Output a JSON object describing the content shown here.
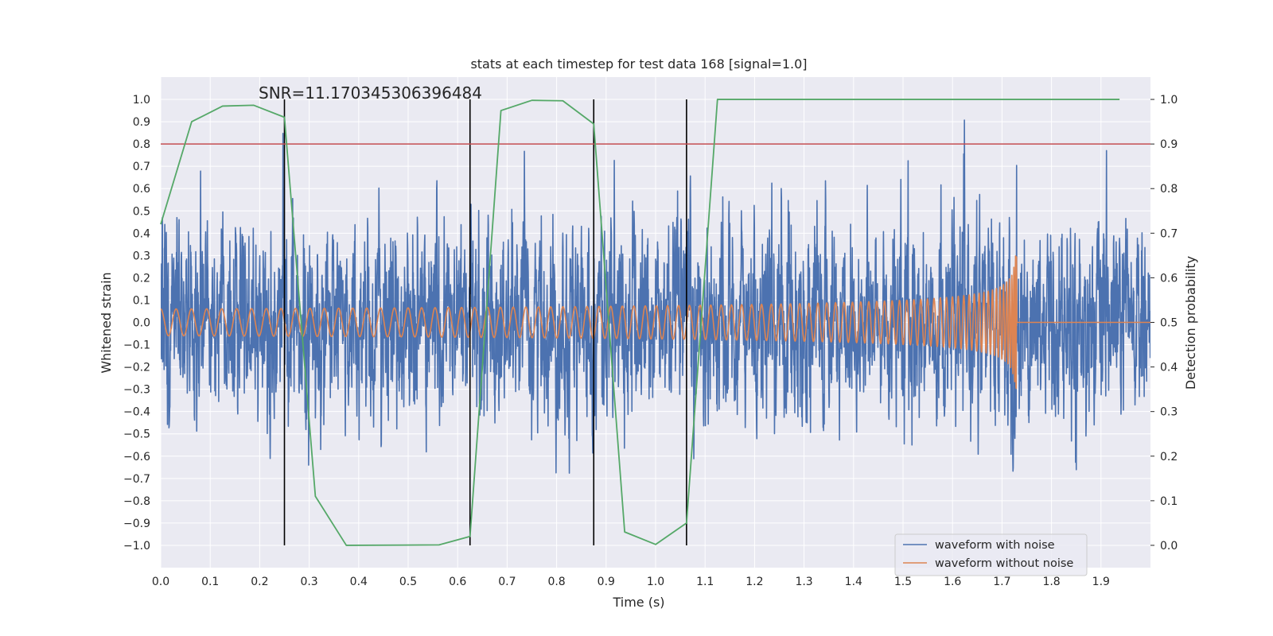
{
  "chart_data": {
    "type": "line",
    "title": "stats at each timestep for test data 168 [signal=1.0]",
    "xlabel": "Time (s)",
    "ylabel": "Whitened strain",
    "y2label": "Detection probability",
    "annotation": "SNR=11.170345306396484",
    "xlim": [
      0.0,
      2.0
    ],
    "ylim": [
      -1.1,
      1.1
    ],
    "y2lim": [
      -0.05,
      1.05
    ],
    "xticks": [
      "0.0",
      "0.1",
      "0.2",
      "0.3",
      "0.4",
      "0.5",
      "0.6",
      "0.7",
      "0.8",
      "0.9",
      "1.0",
      "1.1",
      "1.2",
      "1.3",
      "1.4",
      "1.5",
      "1.6",
      "1.7",
      "1.8",
      "1.9"
    ],
    "yticks": [
      "1.0",
      "0.9",
      "0.8",
      "0.7",
      "0.6",
      "0.5",
      "0.4",
      "0.3",
      "0.2",
      "0.1",
      "0.0",
      "−0.1",
      "−0.2",
      "−0.3",
      "−0.4",
      "−0.5",
      "−0.6",
      "−0.7",
      "−0.8",
      "−0.9",
      "−1.0"
    ],
    "y2ticks": [
      "1.0",
      "0.9",
      "0.8",
      "0.7",
      "0.6",
      "0.5",
      "0.4",
      "0.3",
      "0.2",
      "0.1",
      "0.0"
    ],
    "grid": true,
    "legend_position": "bottom-right",
    "series": [
      {
        "name": "waveform with noise",
        "axis": "left",
        "color": "#4c72b0",
        "description_kind": "noisy whitened strain, approx. 4096 samples, amplitude mostly within ±0.6 with spikes to ±1.0",
        "sample_rate_hz": 2048,
        "amplitude": 0.33
      },
      {
        "name": "waveform without noise",
        "axis": "left",
        "color": "#dd8452",
        "chirp": {
          "start_time": 0.0,
          "merger_time": 1.73,
          "start_frequency_hz": 32,
          "start_amplitude": 0.06,
          "peak_amplitude": 0.33
        }
      },
      {
        "name": "detection probability",
        "axis": "right",
        "color": "#55a868",
        "x": [
          0.0,
          0.0625,
          0.125,
          0.1875,
          0.25,
          0.3125,
          0.375,
          0.5625,
          0.625,
          0.6875,
          0.75,
          0.8125,
          0.875,
          0.9375,
          1.0,
          1.0625,
          1.125,
          1.9375
        ],
        "y": [
          0.72,
          0.95,
          0.985,
          0.987,
          0.96,
          0.11,
          0.0,
          0.001,
          0.02,
          0.975,
          0.998,
          0.997,
          0.945,
          0.03,
          0.002,
          0.05,
          1.0,
          1.0
        ]
      }
    ],
    "threshold": {
      "axis": "left",
      "value": 0.8,
      "color": "#c44e52"
    },
    "vertical_lines": {
      "color": "#000000",
      "x": [
        0.25,
        0.625,
        0.875,
        1.0625
      ]
    }
  }
}
